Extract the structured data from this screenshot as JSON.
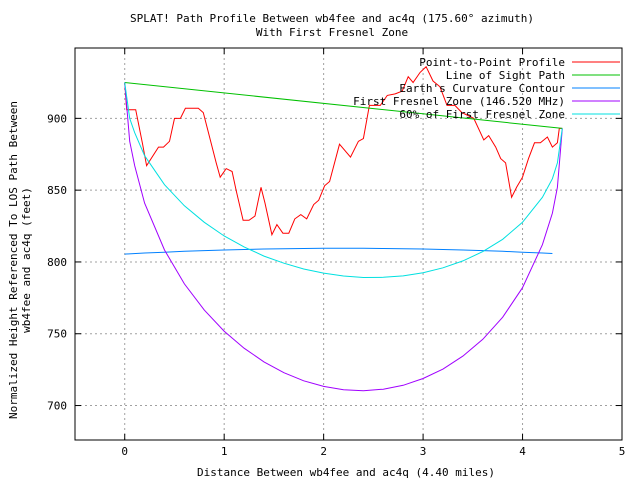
{
  "chart_data": {
    "type": "line",
    "title": "SPLAT! Path Profile Between wb4fee and ac4q (175.60° azimuth)",
    "subtitle": "With First Fresnel Zone",
    "xlabel": "Distance Between wb4fee and ac4q (4.40 miles)",
    "ylabel_line1": "Normalized Height Referenced To LOS Path Between",
    "ylabel_line2": "wb4fee and ac4q (feet)",
    "xlim": [
      -0.5,
      5
    ],
    "ylim": [
      676,
      949
    ],
    "grid": true,
    "legend_position": "top-right",
    "xticks": [
      0,
      1,
      2,
      3,
      4,
      5
    ],
    "xtick_labels": [
      "0",
      "1",
      "2",
      "3",
      "4",
      "5"
    ],
    "yticks": [
      700,
      750,
      800,
      850,
      900
    ],
    "ytick_labels": [
      "700",
      "750",
      "800",
      "850",
      "900"
    ],
    "series": [
      {
        "name": "Point-to-Point Profile",
        "color": "#ff0000",
        "x": [
          0,
          0.02,
          0.11,
          0.18,
          0.22,
          0.34,
          0.39,
          0.45,
          0.5,
          0.56,
          0.61,
          0.74,
          0.79,
          0.86,
          0.92,
          0.96,
          1.02,
          1.08,
          1.12,
          1.19,
          1.25,
          1.31,
          1.37,
          1.41,
          1.48,
          1.53,
          1.59,
          1.65,
          1.71,
          1.77,
          1.83,
          1.9,
          1.95,
          2.01,
          2.06,
          2.16,
          2.27,
          2.35,
          2.4,
          2.46,
          2.57,
          2.64,
          2.72,
          2.79,
          2.85,
          2.9,
          2.97,
          3.03,
          3.1,
          3.17,
          3.24,
          3.32,
          3.39,
          3.51,
          3.61,
          3.66,
          3.73,
          3.78,
          3.83,
          3.89,
          3.94,
          4.0,
          4.06,
          4.12,
          4.18,
          4.25,
          4.3,
          4.35,
          4.37,
          4.4
        ],
        "y": [
          925,
          906,
          906,
          882,
          867,
          880,
          880,
          884,
          900,
          900,
          907,
          907,
          904,
          885,
          869,
          859,
          865,
          863,
          850,
          829,
          829,
          832,
          852,
          841,
          819,
          826,
          820,
          820,
          830,
          833,
          830,
          840,
          843,
          853,
          856,
          882,
          873,
          884,
          886,
          909,
          909,
          916,
          917,
          919,
          929,
          925,
          932,
          936,
          926,
          922,
          909,
          909,
          904,
          900,
          885,
          888,
          880,
          872,
          869,
          845,
          852,
          859,
          872,
          883,
          883,
          887,
          880,
          883,
          893,
          893
        ]
      },
      {
        "name": "Line of Sight Path",
        "color": "#00c000",
        "x": [
          0,
          4.4
        ],
        "y": [
          925,
          893
        ]
      },
      {
        "name": "Earth's Curvature Contour",
        "color": "#0080ff",
        "x": [
          0,
          0.2,
          0.4,
          0.6,
          0.8,
          1.0,
          1.2,
          1.4,
          1.6,
          1.8,
          2.0,
          2.2,
          2.4,
          2.6,
          2.8,
          3.0,
          3.2,
          3.4,
          3.6,
          3.8,
          4.0,
          4.2,
          4.3
        ],
        "y": [
          805.5,
          806.2,
          806.8,
          807.4,
          807.9,
          808.3,
          808.7,
          809.0,
          809.2,
          809.4,
          809.5,
          809.5,
          809.5,
          809.4,
          809.2,
          809.0,
          808.7,
          808.3,
          807.9,
          807.4,
          806.8,
          806.2,
          805.9
        ]
      },
      {
        "name": "First Fresnel Zone (146.520 MHz)",
        "color": "#a000ff",
        "x": [
          0,
          0.05,
          0.1,
          0.2,
          0.4,
          0.6,
          0.8,
          1.0,
          1.2,
          1.4,
          1.6,
          1.8,
          2.0,
          2.2,
          2.4,
          2.6,
          2.8,
          3.0,
          3.2,
          3.4,
          3.6,
          3.8,
          4.0,
          4.2,
          4.3,
          4.35,
          4.4
        ],
        "y": [
          925,
          884,
          867,
          841,
          808.3,
          784.7,
          766.5,
          751.8,
          739.9,
          730.4,
          722.9,
          717.2,
          713.3,
          711.0,
          710.3,
          711.4,
          714.1,
          718.8,
          725.4,
          734.4,
          746.1,
          761.5,
          782.1,
          812.0,
          834,
          852,
          893
        ]
      },
      {
        "name": "60% of First Fresnel Zone",
        "color": "#00e0e0",
        "x": [
          0,
          0.05,
          0.1,
          0.2,
          0.4,
          0.6,
          0.8,
          1.0,
          1.2,
          1.4,
          1.6,
          1.8,
          2.0,
          2.2,
          2.4,
          2.6,
          2.8,
          3.0,
          3.2,
          3.4,
          3.6,
          3.8,
          4.0,
          4.2,
          4.3,
          4.35,
          4.4
        ],
        "y": [
          925,
          900,
          890,
          874.0,
          853.8,
          839.1,
          827.6,
          818.1,
          810.5,
          804.1,
          799.1,
          795.1,
          792.2,
          790.2,
          789.2,
          789.3,
          790.3,
          792.5,
          795.9,
          800.7,
          807.2,
          815.8,
          827.6,
          845.0,
          858,
          869,
          893
        ]
      }
    ]
  }
}
